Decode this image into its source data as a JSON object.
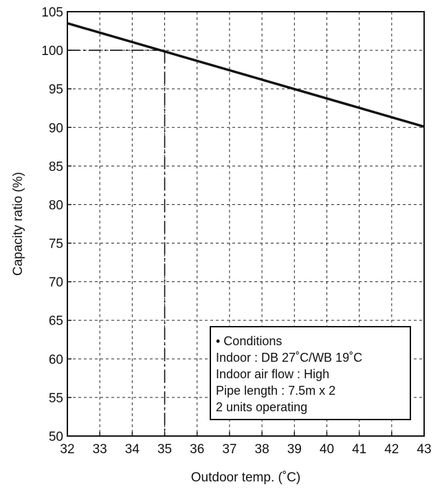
{
  "chart_data": {
    "type": "line",
    "title": "",
    "xlabel": "Outdoor temp. (˚C)",
    "ylabel": "Capacity ratio (%)",
    "xlim": [
      32,
      43
    ],
    "ylim": [
      50,
      105
    ],
    "xticks": [
      32,
      33,
      34,
      35,
      36,
      37,
      38,
      39,
      40,
      41,
      42,
      43
    ],
    "yticks": [
      50,
      55,
      60,
      65,
      70,
      75,
      80,
      85,
      90,
      95,
      100,
      105
    ],
    "grid": true,
    "series": [
      {
        "x": [
          32,
          43
        ],
        "y": [
          103.5,
          90.1
        ]
      }
    ],
    "reference": {
      "x": 35,
      "y": 100
    },
    "annotation": {
      "placement": "bottom-right",
      "lines": [
        "• Conditions",
        "Indoor : DB 27˚C/WB 19˚C",
        "Indoor air flow : High",
        "Pipe length : 7.5m x 2",
        "2 units operating"
      ]
    }
  }
}
